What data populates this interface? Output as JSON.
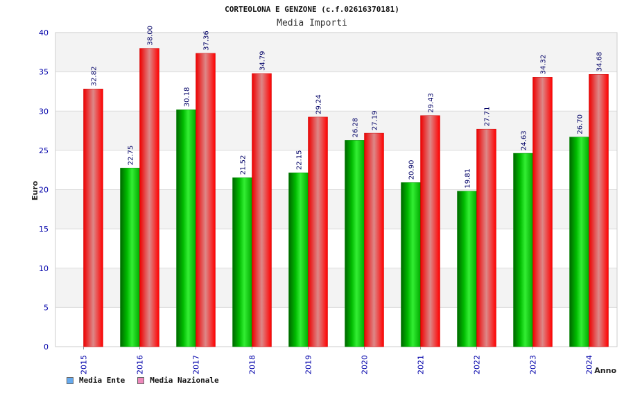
{
  "chart_data": {
    "type": "bar",
    "title": "CORTEOLONA E GENZONE (c.f.02616370181)",
    "subtitle": "Media Importi",
    "xlabel": "Anno",
    "ylabel": "Euro",
    "ylim": [
      0,
      40
    ],
    "yticks": [
      0,
      5,
      10,
      15,
      20,
      25,
      30,
      35,
      40
    ],
    "categories": [
      "2015",
      "2016",
      "2017",
      "2018",
      "2019",
      "2020",
      "2021",
      "2022",
      "2023",
      "2024"
    ],
    "series": [
      {
        "name": "Media Ente",
        "values": [
          null,
          22.75,
          30.18,
          21.52,
          22.15,
          26.28,
          20.9,
          19.81,
          24.63,
          26.7
        ],
        "labels": [
          "",
          "22.75",
          "30.18",
          "21.52",
          "22.15",
          "26.28",
          "20.90",
          "19.81",
          "24.63",
          "26.70"
        ],
        "color": "#00cc00",
        "legend_color": "#66aaee"
      },
      {
        "name": "Media Nazionale",
        "values": [
          32.82,
          38.0,
          37.36,
          34.79,
          29.24,
          27.19,
          29.43,
          27.71,
          34.32,
          34.68
        ],
        "labels": [
          "32.82",
          "38.00",
          "37.36",
          "34.79",
          "29.24",
          "27.19",
          "29.43",
          "27.71",
          "34.32",
          "34.68"
        ],
        "color": "#ff0000",
        "legend_color": "#ee88bb"
      }
    ],
    "grid": true,
    "legend_position": "bottom-left"
  }
}
